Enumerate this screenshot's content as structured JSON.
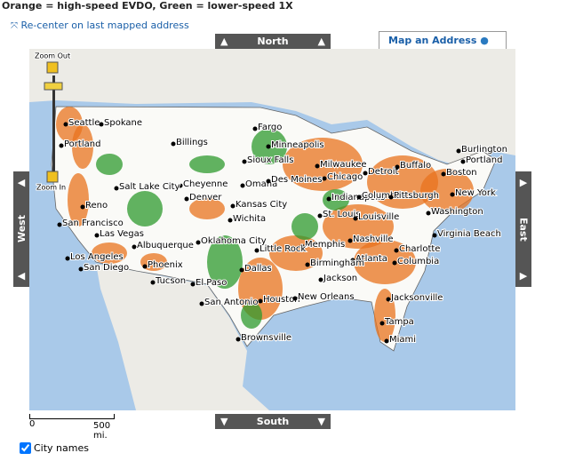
{
  "header": {
    "legend": "Orange = high-speed EVDO, Green = lower-speed 1X",
    "recenter": "Re-center on last mapped address"
  },
  "nav": {
    "north": "North",
    "south": "South",
    "east": "East",
    "west": "West"
  },
  "tab": {
    "label": "Map an Address"
  },
  "zoom": {
    "out": "Zoom Out",
    "in": "Zoom In"
  },
  "scale": {
    "start": "0",
    "end": "500 mi."
  },
  "option": {
    "label": "City names"
  },
  "cities": [
    "Seattle",
    "Spokane",
    "Portland",
    "Billings",
    "Fargo",
    "Minneapolis",
    "Sioux Falls",
    "Burlington",
    "Portland",
    "Milwaukee",
    "Detroit",
    "Buffalo",
    "Boston",
    "Chicago",
    "Cheyenne",
    "Omaha",
    "Des Moines",
    "Salt Lake City",
    "Reno",
    "New York",
    "Indianapolis",
    "Columbus",
    "Pittsburgh",
    "Denver",
    "Kansas City",
    "St. Louis",
    "Louisville",
    "Washington",
    "San Francisco",
    "Wichita",
    "Las Vegas",
    "Nashville",
    "Virginia Beach",
    "Albuquerque",
    "Oklahoma City",
    "Memphis",
    "Little Rock",
    "Charlotte",
    "Los Angeles",
    "Atlanta",
    "Columbia",
    "Birmingham",
    "Phoenix",
    "Dallas",
    "San Diego",
    "Tucson",
    "El Paso",
    "Jackson",
    "San Antonio",
    "Houston",
    "New Orleans",
    "Jacksonville",
    "Tampa",
    "Miami",
    "Brownsville"
  ]
}
